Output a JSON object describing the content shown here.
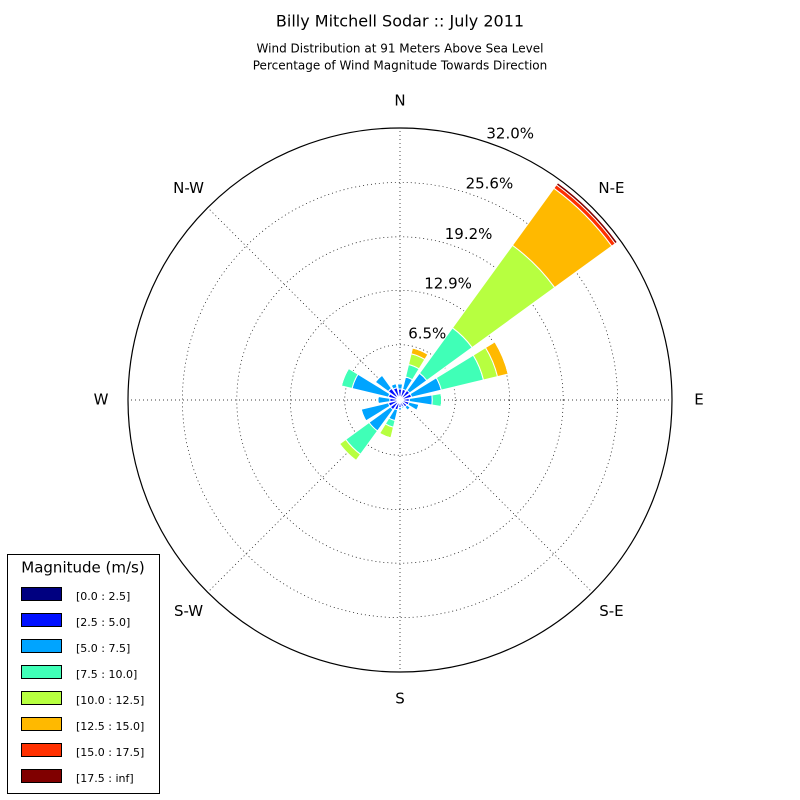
{
  "chart_data": {
    "type": "windrose",
    "title": "Billy Mitchell Sodar :: July 2011",
    "subtitle": [
      "Wind Distribution at 91 Meters Above Sea Level",
      "Percentage of Wind Magnitude Towards Direction"
    ],
    "legend_title": "Magnitude (m/s)",
    "legend_position": "lower left",
    "x": [
      0,
      22.5,
      45,
      67.5,
      90,
      112.5,
      135,
      157.5,
      180,
      202.5,
      225,
      247.5,
      270,
      292.5,
      315,
      337.5
    ],
    "xlim": [
      0,
      360
    ],
    "xticks": [
      {
        "value": 0,
        "label": "N"
      },
      {
        "value": 45,
        "label": "N-E"
      },
      {
        "value": 90,
        "label": "E"
      },
      {
        "value": 135,
        "label": "S-E"
      },
      {
        "value": 180,
        "label": "S"
      },
      {
        "value": 225,
        "label": "S-W"
      },
      {
        "value": 270,
        "label": "W"
      },
      {
        "value": 315,
        "label": "N-W"
      }
    ],
    "ylim": [
      0,
      32.0
    ],
    "yticks": [
      {
        "value": 6.5,
        "label": "6.5%"
      },
      {
        "value": 12.9,
        "label": "12.9%"
      },
      {
        "value": 19.2,
        "label": "19.2%"
      },
      {
        "value": 25.6,
        "label": "25.6%"
      },
      {
        "value": 32.0,
        "label": "32.0%"
      }
    ],
    "grid": true,
    "series": [
      {
        "name": "[0.0 : 2.5]",
        "color": "#000080",
        "values": [
          0.4,
          0.4,
          0.4,
          0.4,
          0.3,
          0.3,
          0.3,
          0.3,
          0.3,
          0.4,
          0.4,
          0.4,
          0.3,
          0.4,
          0.5,
          0.5
        ]
      },
      {
        "name": "[2.5 : 5.0]",
        "color": "#0010ff",
        "values": [
          0.9,
          0.9,
          1.0,
          1.0,
          0.8,
          0.8,
          0.7,
          0.5,
          0.6,
          0.8,
          1.0,
          1.0,
          0.9,
          1.0,
          1.2,
          1.0
        ]
      },
      {
        "name": "[5.0 : 7.5]",
        "color": "#00a4ff",
        "values": [
          0.6,
          1.5,
          2.5,
          3.6,
          2.7,
          1.2,
          0.5,
          0.2,
          0.3,
          1.3,
          3.1,
          3.3,
          1.4,
          4.4,
          1.9,
          0.5
        ]
      },
      {
        "name": "[7.5 : 10.0]",
        "color": "#40ffb7",
        "values": [
          0,
          1.5,
          6.6,
          5.1,
          1.1,
          0,
          0,
          0,
          0,
          0.8,
          3.4,
          0,
          0,
          1.3,
          0,
          0
        ]
      },
      {
        "name": "[10.0 : 12.5]",
        "color": "#b7ff40",
        "values": [
          0,
          1.3,
          12.0,
          1.7,
          0,
          0,
          0,
          0,
          0,
          1.3,
          0.9,
          0,
          0,
          0,
          0,
          0
        ]
      },
      {
        "name": "[12.5 : 15.0]",
        "color": "#ffb900",
        "values": [
          0,
          0.7,
          8.3,
          1.3,
          0,
          0,
          0,
          0,
          0,
          0,
          0,
          0,
          0,
          0,
          0,
          0
        ]
      },
      {
        "name": "[15.0 : 17.5]",
        "color": "#ff3000",
        "values": [
          0,
          0,
          0.5,
          0,
          0,
          0,
          0,
          0,
          0,
          0,
          0,
          0,
          0,
          0,
          0,
          0
        ]
      },
      {
        "name": "[17.5 : inf]",
        "color": "#800000",
        "values": [
          0,
          0,
          0.3,
          0,
          0,
          0,
          0,
          0,
          0,
          0,
          0,
          0,
          0,
          0,
          0,
          0
        ]
      }
    ]
  }
}
